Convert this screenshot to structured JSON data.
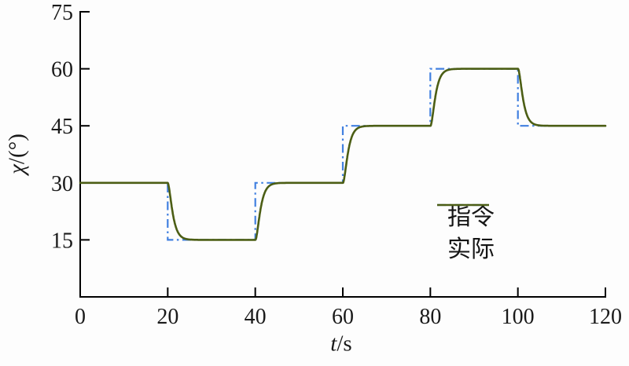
{
  "chart_data": {
    "type": "line",
    "title": "",
    "xlabel": {
      "symbol": "t",
      "unit": "/s"
    },
    "ylabel": {
      "symbol": "χ",
      "unit": "/(°)"
    },
    "xlim": [
      0,
      120
    ],
    "ylim": [
      0,
      75
    ],
    "xticks": {
      "values": [
        0,
        20,
        40,
        60,
        80,
        100,
        120
      ],
      "labels": [
        "0",
        "20",
        "40",
        "60",
        "80",
        "100",
        "120"
      ]
    },
    "yticks": {
      "values": [
        15,
        30,
        45,
        60,
        75
      ],
      "labels": [
        "15",
        "30",
        "45",
        "60",
        "75"
      ]
    },
    "grid": false,
    "axis_color": "#000000",
    "legend": {
      "position": "inside-right-middle",
      "entries_from_series": true
    },
    "series": [
      {
        "name": "指令",
        "role": "command",
        "kind": "step",
        "color": "#4180e0",
        "line_style": "dash-dot",
        "dasharray": "11 4.5 2.5 4.5",
        "line_width": 2.2,
        "steps": [
          {
            "t": 0,
            "value": 30
          },
          {
            "t": 20,
            "value": 15
          },
          {
            "t": 40,
            "value": 30
          },
          {
            "t": 60,
            "value": 45
          },
          {
            "t": 80,
            "value": 60
          },
          {
            "t": 100,
            "value": 45
          }
        ],
        "t_end": 120
      },
      {
        "name": "实际",
        "role": "actual",
        "kind": "tracking-response",
        "color": "#4c5e15",
        "line_style": "solid",
        "line_width": 2.6,
        "tracks": "指令",
        "model": "second-order-critically-damped",
        "omega_n": 1.5,
        "settle_time_s": 5,
        "t_end": 120
      }
    ]
  }
}
